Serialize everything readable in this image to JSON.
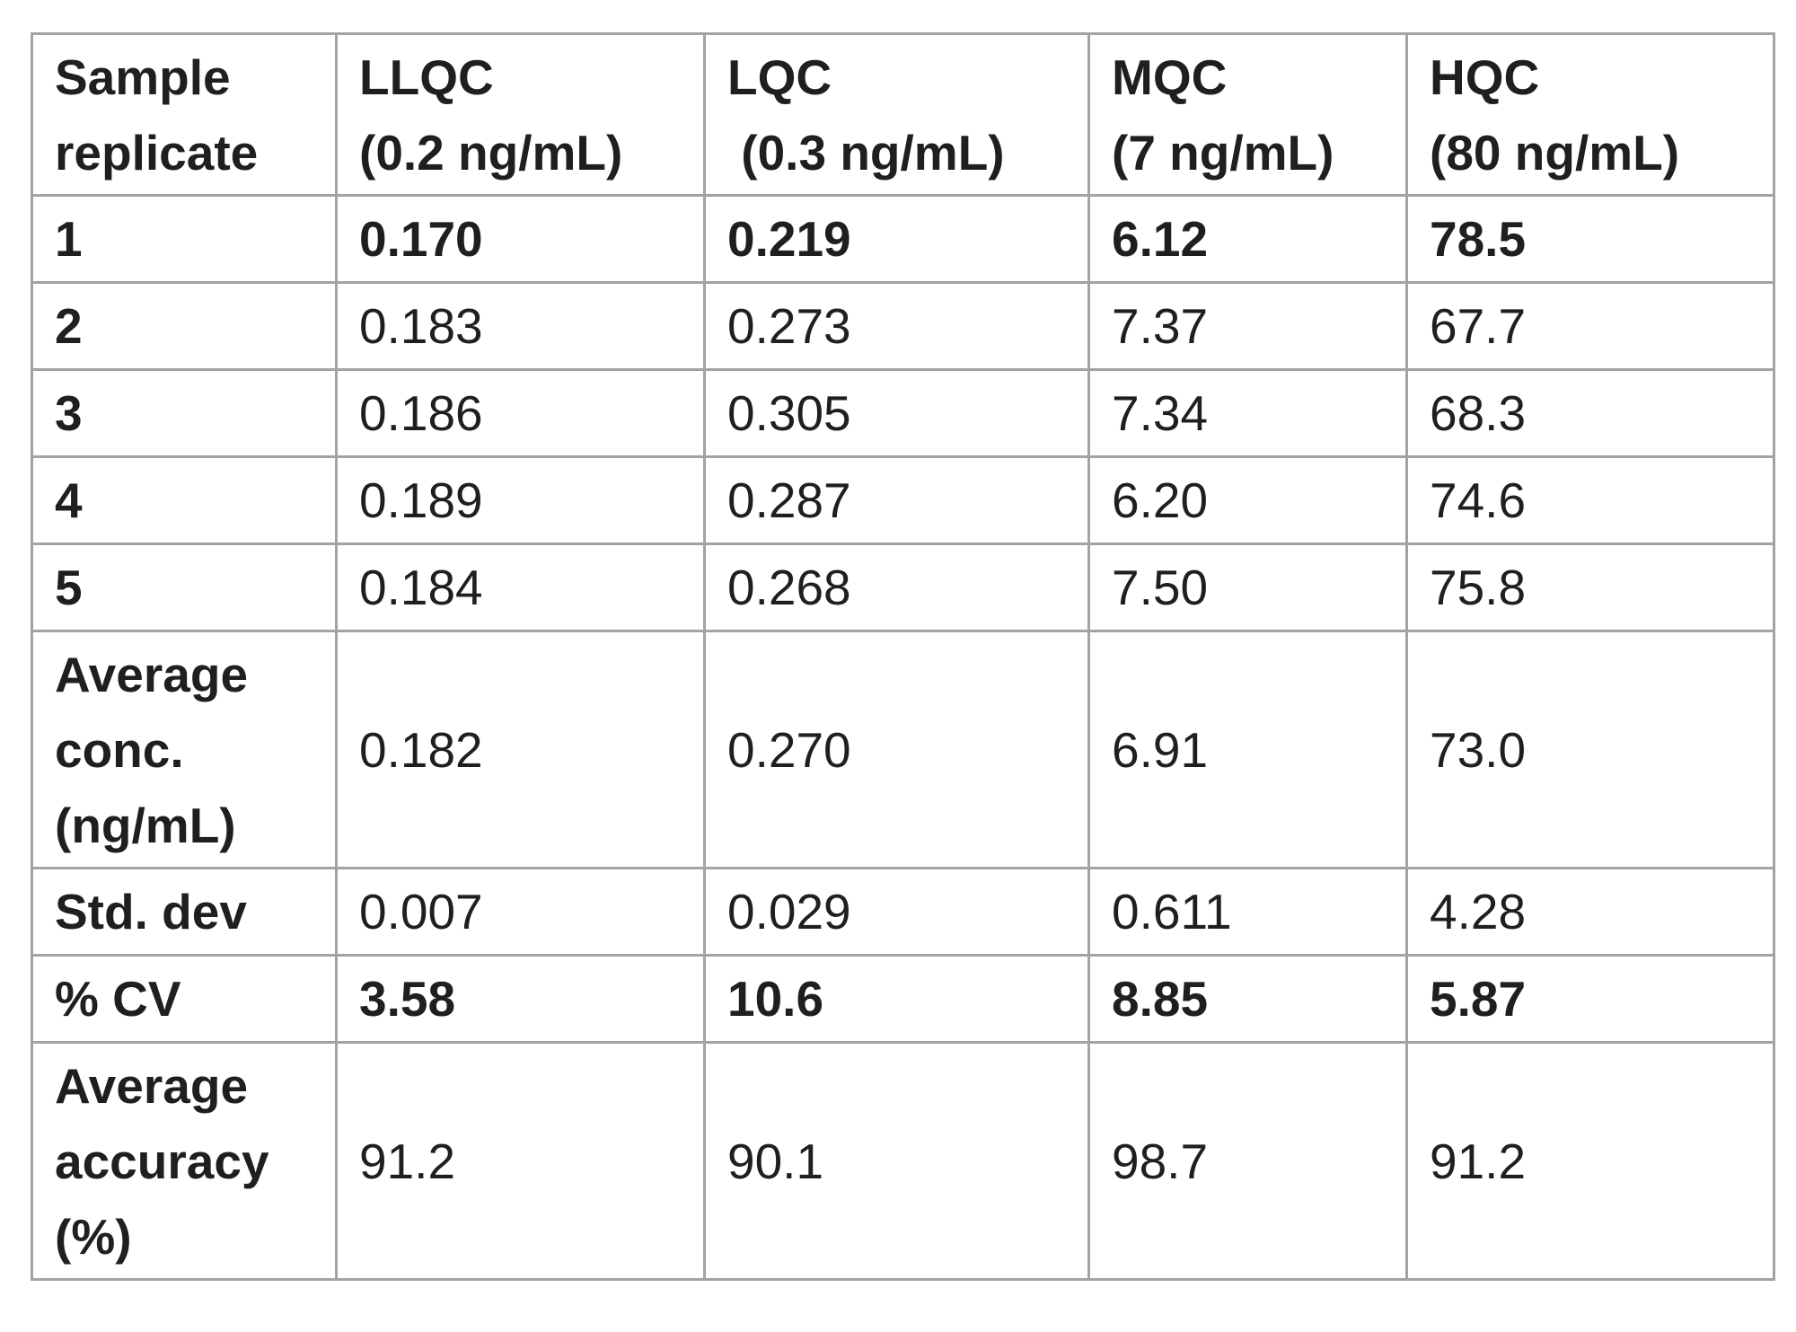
{
  "table": {
    "headers": [
      [
        "Sample",
        "replicate"
      ],
      [
        "LLQC",
        "(0.2 ng/mL)"
      ],
      [
        "LQC",
        " (0.3 ng/mL)"
      ],
      [
        "MQC",
        "(7 ng/mL)"
      ],
      [
        "HQC",
        "(80 ng/mL)"
      ]
    ],
    "rows": [
      {
        "label": [
          "1"
        ],
        "values": [
          "0.170",
          "0.219",
          "6.12",
          "78.5"
        ],
        "bold": true
      },
      {
        "label": [
          "2"
        ],
        "values": [
          "0.183",
          "0.273",
          "7.37",
          "67.7"
        ],
        "bold": false
      },
      {
        "label": [
          "3"
        ],
        "values": [
          "0.186",
          "0.305",
          "7.34",
          "68.3"
        ],
        "bold": false
      },
      {
        "label": [
          "4"
        ],
        "values": [
          "0.189",
          "0.287",
          "6.20",
          "74.6"
        ],
        "bold": false
      },
      {
        "label": [
          "5"
        ],
        "values": [
          "0.184",
          "0.268",
          "7.50",
          "75.8"
        ],
        "bold": false
      },
      {
        "label": [
          "Average",
          "conc.",
          "(ng/mL)"
        ],
        "values": [
          "0.182",
          "0.270",
          "6.91",
          "73.0"
        ],
        "bold": false
      },
      {
        "label": [
          "Std. dev"
        ],
        "values": [
          "0.007",
          "0.029",
          "0.611",
          "4.28"
        ],
        "bold": false
      },
      {
        "label": [
          "% CV"
        ],
        "values": [
          "3.58",
          "10.6",
          "8.85",
          "5.87"
        ],
        "bold": true
      },
      {
        "label": [
          "Average",
          "accuracy",
          "(%)"
        ],
        "values": [
          "91.2",
          "90.1",
          "98.7",
          "91.2"
        ],
        "bold": false
      }
    ]
  }
}
